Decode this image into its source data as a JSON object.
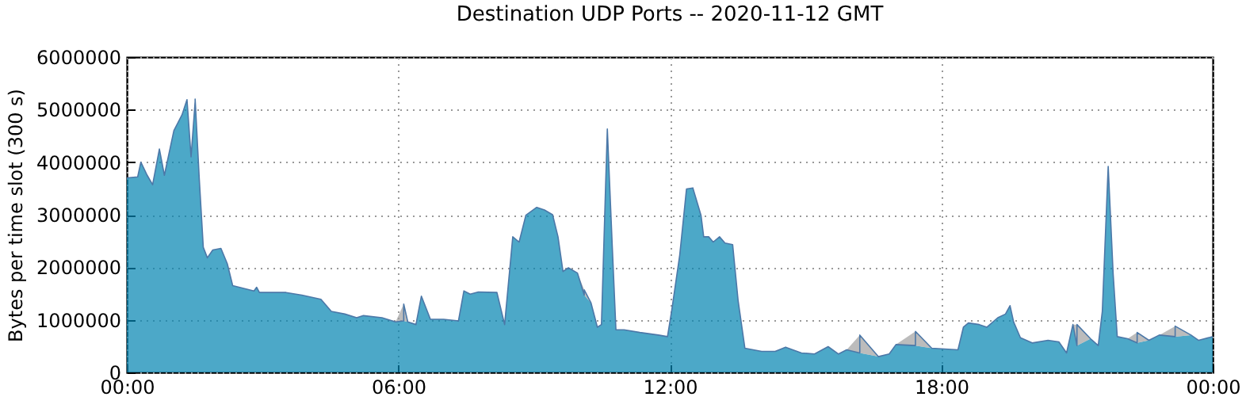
{
  "chart_data": {
    "type": "area",
    "title": "Destination UDP Ports -- 2020-11-12 GMT",
    "ylabel": "Bytes per time slot (300 s)",
    "stacked": true,
    "grid": true,
    "xlim": [
      0,
      24
    ],
    "xticks": [
      {
        "value": 0,
        "label": "00:00"
      },
      {
        "value": 6,
        "label": "06:00"
      },
      {
        "value": 12,
        "label": "12:00"
      },
      {
        "value": 18,
        "label": "18:00"
      },
      {
        "value": 24,
        "label": "00:00"
      }
    ],
    "ylim": [
      0,
      6000000
    ],
    "yticks": [
      0,
      1000000,
      2000000,
      3000000,
      4000000,
      5000000,
      6000000
    ],
    "x": [
      0,
      0.24,
      0.31,
      0.45,
      0.57,
      0.72,
      0.83,
      1.04,
      1.22,
      1.33,
      1.42,
      1.51,
      1.6,
      1.69,
      1.78,
      1.9,
      2.08,
      2.22,
      2.34,
      2.81,
      2.87,
      2.93,
      3.52,
      3.87,
      4.29,
      4.52,
      4.82,
      5.08,
      5.23,
      5.64,
      5.94,
      6.12,
      6.21,
      6.39,
      6.51,
      6.71,
      7.0,
      7.33,
      7.45,
      7.59,
      7.77,
      8.18,
      8.35,
      8.53,
      8.67,
      8.82,
      9.06,
      9.23,
      9.41,
      9.53,
      9.64,
      9.76,
      9.96,
      10.11,
      10.26,
      10.4,
      10.49,
      10.62,
      10.73,
      10.81,
      10.99,
      11.34,
      11.75,
      11.95,
      12.04,
      12.22,
      12.37,
      12.51,
      12.69,
      12.75,
      12.86,
      12.96,
      13.1,
      13.22,
      13.39,
      13.51,
      13.66,
      14.03,
      14.33,
      14.56,
      14.91,
      15.2,
      15.5,
      15.73,
      15.91,
      16.2,
      16.61,
      16.85,
      17.0,
      17.43,
      17.79,
      18.37,
      18.49,
      18.6,
      18.84,
      19.01,
      19.25,
      19.42,
      19.52,
      19.6,
      19.75,
      20.01,
      20.36,
      20.6,
      20.77,
      20.91,
      21.0,
      21.3,
      21.47,
      21.56,
      21.69,
      21.8,
      21.89,
      22.12,
      22.33,
      22.59,
      22.82,
      23.17,
      23.52,
      23.69,
      24
    ],
    "series": [
      {
        "color": "#0083b0",
        "values": [
          3700000,
          3720000,
          4000000,
          3750000,
          3570000,
          4250000,
          3750000,
          4600000,
          4900000,
          5190000,
          4100000,
          5150000,
          3700000,
          2380000,
          2180000,
          2330000,
          2360000,
          2070000,
          1650000,
          1550000,
          1620000,
          1520000,
          1520000,
          1470000,
          1390000,
          1160000,
          1110000,
          1040000,
          1080000,
          1040000,
          960000,
          980000,
          960000,
          910000,
          1450000,
          1010000,
          1010000,
          980000,
          1550000,
          1490000,
          1530000,
          1520000,
          910000,
          2580000,
          2480000,
          2990000,
          3140000,
          3090000,
          3000000,
          2580000,
          1920000,
          1990000,
          1890000,
          1470000,
          1320000,
          860000,
          910000,
          4630000,
          2380000,
          810000,
          810000,
          760000,
          710000,
          680000,
          1160000,
          2230000,
          3490000,
          3510000,
          2990000,
          2580000,
          2580000,
          2480000,
          2580000,
          2460000,
          2430000,
          1370000,
          460000,
          400000,
          400000,
          480000,
          370000,
          350000,
          490000,
          350000,
          430000,
          370000,
          300000,
          350000,
          530000,
          510000,
          460000,
          430000,
          860000,
          940000,
          910000,
          860000,
          1040000,
          1110000,
          1270000,
          960000,
          660000,
          560000,
          610000,
          580000,
          370000,
          910000,
          510000,
          640000,
          510000,
          1160000,
          3920000,
          1870000,
          680000,
          640000,
          560000,
          610000,
          710000,
          680000,
          710000,
          610000,
          680000
        ]
      },
      {
        "color": "#a0a0a0",
        "values": [
          0,
          0,
          0,
          0,
          0,
          0,
          0,
          0,
          0,
          0,
          0,
          50000,
          0,
          0,
          0,
          0,
          0,
          0,
          0,
          0,
          0,
          0,
          0,
          0,
          0,
          0,
          0,
          0,
          0,
          0,
          0,
          320000,
          0,
          0,
          0,
          0,
          0,
          0,
          0,
          0,
          0,
          0,
          0,
          0,
          0,
          0,
          0,
          0,
          0,
          0,
          0,
          0,
          0,
          100000,
          0,
          0,
          0,
          0,
          0,
          0,
          0,
          0,
          0,
          0,
          0,
          0,
          0,
          0,
          0,
          0,
          0,
          0,
          0,
          0,
          0,
          0,
          0,
          0,
          0,
          0,
          0,
          0,
          0,
          0,
          0,
          340000,
          0,
          0,
          0,
          270000,
          0,
          0,
          0,
          0,
          0,
          0,
          0,
          0,
          0,
          0,
          0,
          0,
          0,
          0,
          0,
          0,
          400000,
          0,
          0,
          0,
          0,
          0,
          0,
          0,
          200000,
          0,
          0,
          200000,
          0,
          0,
          0
        ]
      }
    ]
  }
}
